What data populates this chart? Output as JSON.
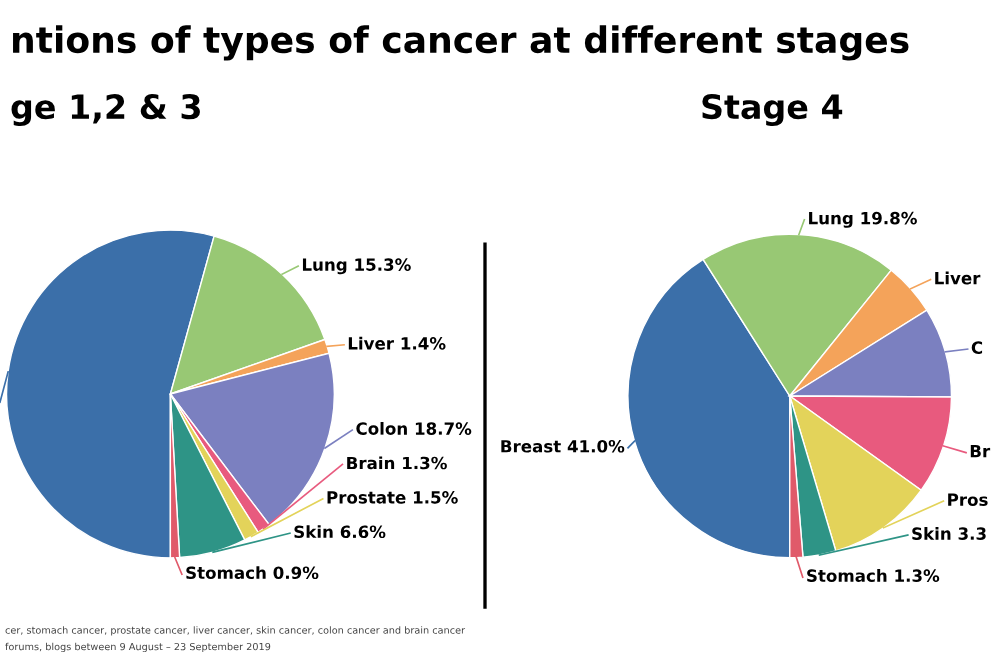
{
  "chart_data": [
    {
      "type": "pie",
      "title": "ge 1,2 & 3",
      "categories": [
        null,
        "Lung",
        "Liver",
        "Colon",
        "Brain",
        "Prostate",
        "Skin",
        "Stomach"
      ],
      "values": [
        54.3,
        15.3,
        1.4,
        18.7,
        1.3,
        1.5,
        6.6,
        0.9
      ],
      "value_labels": [
        null,
        "15.3%",
        "1.4%",
        "18.7%",
        "1.3%",
        "1.5%",
        "6.6%",
        "0.9%"
      ],
      "colors": [
        "#3b6fa9",
        "#98c874",
        "#f4a35a",
        "#7b80c0",
        "#e85a7e",
        "#e3d35a",
        "#2e9486",
        "#e05a6a"
      ],
      "annotations": [
        "ntions of types of cancer at different stages",
        "cer, stomach cancer, prostate cancer, liver cancer, skin cancer, colon cancer and brain cancer",
        "forums, blogs between 9 August – 23 September 2019"
      ]
    },
    {
      "type": "pie",
      "title": "Stage 4",
      "categories": [
        "Breast",
        "Lung",
        "Liver",
        "C",
        "Br",
        "Pros",
        "Skin",
        "Stomach"
      ],
      "values": [
        41.0,
        19.8,
        5.3,
        9.0,
        9.8,
        10.5,
        3.3,
        1.3
      ],
      "value_labels": [
        "41.0%",
        "19.8%",
        null,
        null,
        null,
        null,
        "3.3",
        "1.3%"
      ],
      "colors": [
        "#3b6fa9",
        "#98c874",
        "#f4a35a",
        "#7b80c0",
        "#e85a7e",
        "#e3d35a",
        "#2e9486",
        "#e05a6a"
      ]
    }
  ]
}
